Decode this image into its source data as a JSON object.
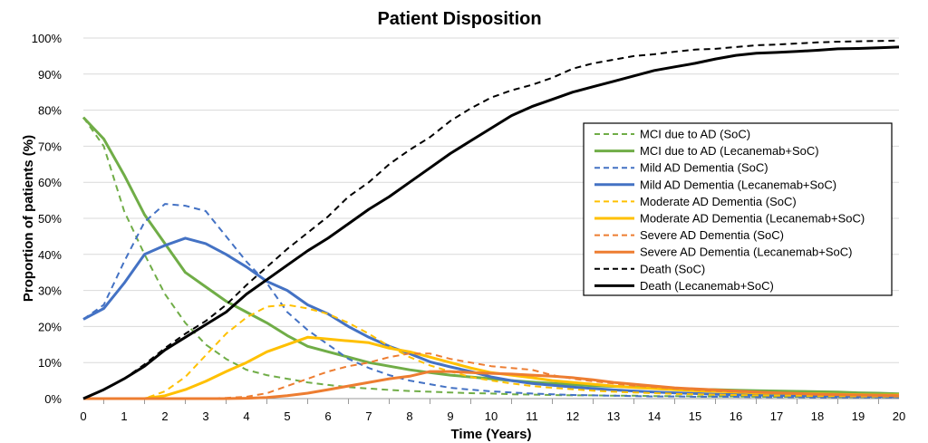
{
  "chart_data": {
    "type": "line",
    "title": "Patient Disposition",
    "xlabel": "Time (Years)",
    "ylabel": "Proportion of patients (%)",
    "xlim": [
      0,
      20
    ],
    "ylim": [
      0,
      100
    ],
    "x_ticks": [
      "0",
      "1",
      "2",
      "3",
      "4",
      "5",
      "6",
      "7",
      "8",
      "9",
      "10",
      "11",
      "12",
      "13",
      "14",
      "15",
      "16",
      "17",
      "18",
      "19",
      "20"
    ],
    "y_ticks": [
      "0%",
      "10%",
      "20%",
      "30%",
      "40%",
      "50%",
      "60%",
      "70%",
      "80%",
      "90%",
      "100%"
    ],
    "grid": "horizontal",
    "legend_position": "right",
    "x": [
      0,
      0.5,
      1,
      1.5,
      2,
      2.5,
      3,
      3.5,
      4,
      4.5,
      5,
      5.5,
      6,
      6.5,
      7,
      7.5,
      8,
      8.5,
      9,
      9.5,
      10,
      10.5,
      11,
      11.5,
      12,
      12.5,
      13,
      13.5,
      14,
      14.5,
      15,
      15.5,
      16,
      16.5,
      17,
      17.5,
      18,
      18.5,
      19,
      19.5,
      20
    ],
    "series": [
      {
        "name": "MCI due to AD (SoC)",
        "color": "#70AD47",
        "dash": true,
        "values": [
          78,
          70,
          52,
          40,
          29,
          21,
          15,
          11,
          8,
          6.5,
          5.5,
          4.5,
          3.8,
          3.2,
          2.8,
          2.4,
          2.1,
          1.9,
          1.7,
          1.5,
          1.4,
          1.2,
          1.1,
          1,
          0.9,
          0.9,
          0.8,
          0.8,
          0.7,
          0.7,
          0.6,
          0.6,
          0.6,
          0.5,
          0.5,
          0.5,
          0.5,
          0.4,
          0.4,
          0.4,
          0.4
        ]
      },
      {
        "name": "MCI due to AD (Lecanemab+SoC)",
        "color": "#70AD47",
        "dash": false,
        "values": [
          78,
          72,
          62,
          51,
          43,
          35,
          31,
          27,
          24,
          21,
          17.5,
          14.5,
          13,
          11.5,
          10,
          9,
          8,
          7.2,
          6.5,
          6,
          5.5,
          5,
          4.6,
          4.2,
          3.9,
          3.6,
          3.4,
          3.2,
          3,
          2.8,
          2.6,
          2.5,
          2.3,
          2.2,
          2.1,
          2,
          1.9,
          1.8,
          1.6,
          1.5,
          1.3
        ]
      },
      {
        "name": "Mild AD Dementia (SoC)",
        "color": "#4472C4",
        "dash": true,
        "values": [
          22,
          26,
          38,
          49,
          54,
          53.5,
          52,
          45,
          38,
          32,
          24,
          19,
          15,
          11,
          8.5,
          6.5,
          5,
          4,
          3,
          2.5,
          2,
          1.7,
          1.4,
          1.2,
          1,
          0.9,
          0.8,
          0.7,
          0.6,
          0.6,
          0.5,
          0.5,
          0.5,
          0.4,
          0.4,
          0.4,
          0.3,
          0.3,
          0.3,
          0.3,
          0.3
        ]
      },
      {
        "name": "Mild AD Dementia (Lecanemab+SoC)",
        "color": "#4472C4",
        "dash": false,
        "values": [
          22,
          25,
          32,
          40,
          42.5,
          44.5,
          43,
          40,
          36.5,
          32.5,
          30,
          26,
          23.5,
          20,
          17,
          14.5,
          12.5,
          10.2,
          8.8,
          7.5,
          6,
          5,
          4.2,
          3.7,
          3.2,
          2.8,
          2.4,
          2.1,
          1.8,
          1.6,
          1.4,
          1.2,
          1.1,
          1,
          0.9,
          0.8,
          0.7,
          0.7,
          0.6,
          0.6,
          0.5
        ]
      },
      {
        "name": "Moderate AD Dementia (SoC)",
        "color": "#FFC000",
        "dash": true,
        "values": [
          0,
          0,
          0,
          0,
          2,
          6,
          12,
          18,
          22.5,
          25.5,
          26,
          25,
          23.5,
          21,
          18,
          14.5,
          11.5,
          9.2,
          7.5,
          6,
          5,
          4.2,
          3.5,
          3,
          2.6,
          2.2,
          1.9,
          1.7,
          1.5,
          1.3,
          1.2,
          1.1,
          1,
          0.9,
          0.8,
          0.8,
          0.7,
          0.7,
          0.6,
          0.6,
          0.6
        ]
      },
      {
        "name": "Moderate AD Dementia (Lecanemab+SoC)",
        "color": "#FFC000",
        "dash": false,
        "values": [
          0,
          0,
          0,
          0,
          0.8,
          2.5,
          4.8,
          7.5,
          10,
          13,
          15,
          17,
          16.5,
          16,
          15.5,
          14,
          13,
          11.5,
          10,
          8.5,
          7.2,
          6.5,
          5.8,
          5,
          4.5,
          4,
          3.5,
          3.1,
          2.8,
          2.5,
          2.2,
          2,
          1.8,
          1.6,
          1.5,
          1.4,
          1.3,
          1.2,
          1.1,
          1,
          1
        ]
      },
      {
        "name": "Severe AD Dementia (SoC)",
        "color": "#ED7D31",
        "dash": true,
        "values": [
          0,
          0,
          0,
          0,
          0,
          0,
          0,
          0.2,
          0.5,
          1.5,
          3.5,
          5.5,
          7.5,
          9,
          10,
          11.5,
          12.5,
          12.5,
          11,
          10,
          9,
          8.5,
          8,
          6.5,
          5.5,
          4.8,
          4.2,
          3.6,
          3.2,
          2.8,
          2.4,
          2.1,
          1.9,
          1.7,
          1.5,
          1.3,
          1.2,
          1.1,
          1,
          0.9,
          0.9
        ]
      },
      {
        "name": "Severe AD Dementia (Lecanemab+SoC)",
        "color": "#ED7D31",
        "dash": false,
        "values": [
          0,
          0,
          0,
          0,
          0,
          0,
          0,
          0,
          0.1,
          0.3,
          0.8,
          1.5,
          2.5,
          3.5,
          4.5,
          5.5,
          6.2,
          7.5,
          7.5,
          7.2,
          7,
          6.8,
          6.5,
          6.2,
          5.8,
          5.2,
          4.5,
          4,
          3.5,
          3,
          2.7,
          2.4,
          2.1,
          1.8,
          1.6,
          1.4,
          1.2,
          1.1,
          1,
          0.9,
          0.8
        ]
      },
      {
        "name": "Death (SoC)",
        "color": "#000000",
        "dash": true,
        "values": [
          0,
          2.5,
          5.5,
          9.5,
          14,
          18,
          21.5,
          26,
          31.5,
          36.5,
          41.5,
          46,
          50.5,
          56,
          60,
          65,
          69,
          72.5,
          77,
          80.5,
          83.5,
          85.5,
          87,
          89,
          91.5,
          93,
          94,
          95,
          95.5,
          96.2,
          96.8,
          97,
          97.5,
          98,
          98.2,
          98.5,
          98.8,
          99,
          99.1,
          99.2,
          99.3
        ]
      },
      {
        "name": "Death (Lecanemab+SoC)",
        "color": "#000000",
        "dash": false,
        "values": [
          0,
          2.5,
          5.5,
          9,
          13.5,
          17,
          20.5,
          24,
          29,
          33,
          37,
          41,
          44.5,
          48.5,
          52.5,
          56,
          60,
          64,
          68,
          71.5,
          75,
          78.5,
          81,
          83,
          85,
          86.5,
          88,
          89.5,
          91,
          92,
          93,
          94.2,
          95.2,
          95.8,
          96,
          96.3,
          96.6,
          97,
          97.1,
          97.3,
          97.5
        ]
      }
    ]
  }
}
